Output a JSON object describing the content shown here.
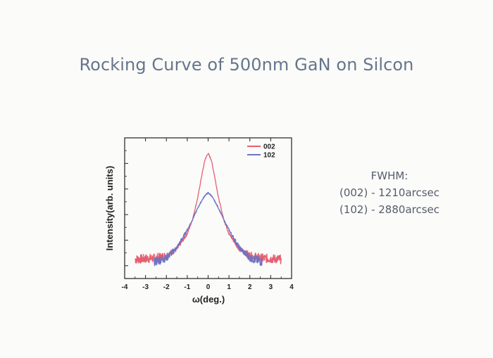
{
  "slide": {
    "title": "Rocking Curve of 500nm GaN on Silcon",
    "fwhm_heading": "FWHM:",
    "fwhm_lines": [
      "(002) - 1210arcsec",
      "(102) - 2880arcsec"
    ]
  },
  "chart_data": {
    "type": "line",
    "title": "",
    "xlabel": "ω(deg.)",
    "ylabel": "Intensity(arb. units)",
    "xlim": [
      -4,
      4
    ],
    "ylim": [
      0,
      1.1
    ],
    "x_ticks": [
      "-4",
      "-3",
      "-2",
      "-1",
      "0",
      "1",
      "2",
      "3",
      "4"
    ],
    "y_tick_labels": false,
    "legend_position": "top-right",
    "series": [
      {
        "name": "002",
        "color": "#e45f6f",
        "x": [
          -3.5,
          -3.0,
          -2.5,
          -2.0,
          -1.5,
          -1.0,
          -0.75,
          -0.5,
          -0.3,
          -0.15,
          0.0,
          0.15,
          0.3,
          0.5,
          0.75,
          1.0,
          1.5,
          2.0,
          2.5,
          3.0,
          3.5
        ],
        "y": [
          0.15,
          0.155,
          0.16,
          0.18,
          0.23,
          0.35,
          0.46,
          0.63,
          0.81,
          0.93,
          0.98,
          0.93,
          0.81,
          0.63,
          0.46,
          0.35,
          0.23,
          0.18,
          0.16,
          0.155,
          0.15
        ]
      },
      {
        "name": "102",
        "color": "#6e74c4",
        "x": [
          -2.6,
          -2.0,
          -1.5,
          -1.0,
          -0.75,
          -0.5,
          -0.3,
          -0.15,
          0.0,
          0.15,
          0.3,
          0.5,
          0.75,
          1.0,
          1.5,
          2.0,
          2.6
        ],
        "y": [
          0.13,
          0.16,
          0.24,
          0.38,
          0.46,
          0.55,
          0.61,
          0.65,
          0.67,
          0.65,
          0.61,
          0.55,
          0.46,
          0.38,
          0.24,
          0.16,
          0.13
        ]
      }
    ]
  }
}
